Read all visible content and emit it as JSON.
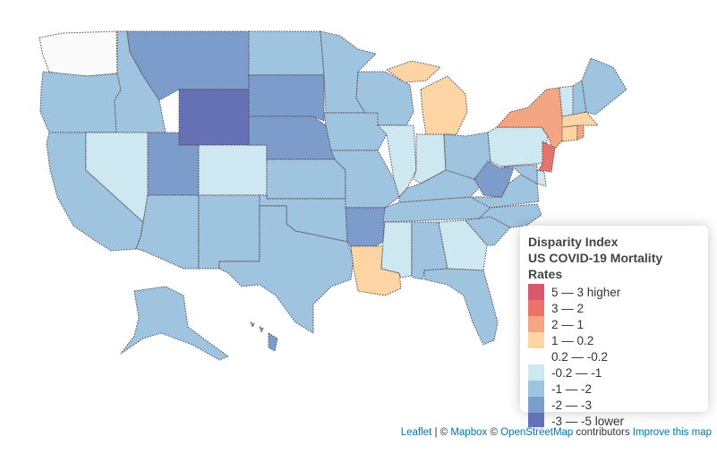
{
  "legend": {
    "title": "Disparity Index",
    "subtitle": "US COVID-19 Mortality Rates",
    "items": [
      {
        "label": "5 — 3 higher",
        "color": "#d7576b"
      },
      {
        "label": "3 — 2",
        "color": "#e8736b"
      },
      {
        "label": "2 — 1",
        "color": "#f4a582"
      },
      {
        "label": "1 — 0.2",
        "color": "#fdd5a4"
      },
      {
        "label": "0.2 — -0.2",
        "color": "#ffffff"
      },
      {
        "label": "-0.2 — -1",
        "color": "#cde8f1"
      },
      {
        "label": "-1 — -2",
        "color": "#9fc4df"
      },
      {
        "label": "-2 — -3",
        "color": "#7c9ccc"
      },
      {
        "label": "-3 — -5 lower",
        "color": "#6671b5"
      }
    ]
  },
  "attribution": {
    "leaflet": "Leaflet",
    "sep1": " | © ",
    "mapbox": "Mapbox",
    "sep2": " © ",
    "osm": "OpenStreetMap",
    "contributors": " contributors ",
    "improve": "Improve this map"
  },
  "colors": {
    "WA": "#fafafa",
    "OR": "#9fc4df",
    "CA": "#9fc4df",
    "ID": "#9fc4df",
    "NV": "#cde8f1",
    "MT": "#7c9ccc",
    "WY": "#6671b5",
    "UT": "#7c9ccc",
    "AZ": "#9fc4df",
    "CO": "#cde8f1",
    "NM": "#9fc4df",
    "ND": "#9fc4df",
    "SD": "#7c9ccc",
    "NE": "#7c9ccc",
    "KS": "#9fc4df",
    "OK": "#9fc4df",
    "TX": "#9fc4df",
    "MN": "#9fc4df",
    "IA": "#9fc4df",
    "MO": "#9fc4df",
    "AR": "#7c9ccc",
    "LA": "#fdd5a4",
    "WI": "#9fc4df",
    "IL": "#cde8f1",
    "MI": "#fdd5a4",
    "IN": "#cde8f1",
    "OH": "#9fc4df",
    "KY": "#9fc4df",
    "TN": "#9fc4df",
    "MS": "#cde8f1",
    "AL": "#9fc4df",
    "GA": "#cde8f1",
    "FL": "#9fc4df",
    "SC": "#9fc4df",
    "NC": "#9fc4df",
    "VA": "#9fc4df",
    "WV": "#7c9ccc",
    "PA": "#cde8f1",
    "NY": "#f4a582",
    "NJ": "#e8736b",
    "DE": "#cde8f1",
    "MD": "#9fc4df",
    "CT": "#fdd5a4",
    "RI": "#f4a582",
    "MA": "#fdd5a4",
    "VT": "#cde8f1",
    "NH": "#9fc4df",
    "ME": "#9fc4df",
    "AK": "#9fc4df",
    "HI": "#7c9ccc"
  }
}
